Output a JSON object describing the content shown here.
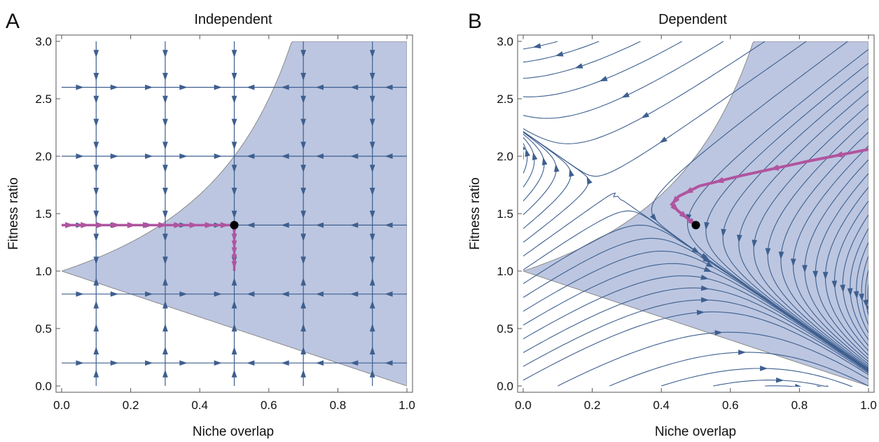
{
  "figure": {
    "colors": {
      "shade": "#b8c3de",
      "flow": "#3e5f8f",
      "trajectory": "#b0549f",
      "point": "#000000",
      "boundary": "#8a8a8a"
    }
  },
  "chart_data": [
    {
      "type": "streamplot",
      "panel_label": "A",
      "title": "Independent",
      "xlabel": "Niche overlap",
      "ylabel": "Fitness ratio",
      "xlim": [
        0,
        1
      ],
      "ylim": [
        0,
        3
      ],
      "x_ticks": [
        "0.0",
        "0.2",
        "0.4",
        "0.6",
        "0.8",
        "1.0"
      ],
      "y_ticks": [
        "0.0",
        "0.5",
        "1.0",
        "1.5",
        "2.0",
        "2.5",
        "3.0"
      ],
      "shaded_region": "coexistence: 1 - x < y < 1/(1 - x)",
      "equilibrium_point": {
        "x": 0.5,
        "y": 1.4
      },
      "flow_lines": {
        "vertical_x": [
          0.1,
          0.3,
          0.5,
          0.7,
          0.9
        ],
        "horizontal_y": [
          0.2,
          0.8,
          1.4,
          2.0,
          2.6
        ]
      },
      "trajectory": [
        [
          0.0,
          1.4
        ],
        [
          0.5,
          1.4
        ],
        [
          0.5,
          1.0
        ]
      ]
    },
    {
      "type": "streamplot",
      "panel_label": "B",
      "title": "Dependent",
      "xlabel": "Niche overlap",
      "ylabel": "Fitness ratio",
      "xlim": [
        0,
        1
      ],
      "ylim": [
        0,
        3
      ],
      "x_ticks": [
        "0.0",
        "0.2",
        "0.4",
        "0.6",
        "0.8",
        "1.0"
      ],
      "y_ticks": [
        "0.0",
        "0.5",
        "1.0",
        "1.5",
        "2.0",
        "2.5",
        "3.0"
      ],
      "shaded_region": "coexistence: 1 - x < y < 1/(1 - x)",
      "equilibrium_point": {
        "x": 0.5,
        "y": 1.4
      },
      "trajectory": [
        [
          1.0,
          2.06
        ],
        [
          0.83,
          1.96
        ],
        [
          0.63,
          1.83
        ],
        [
          0.51,
          1.74
        ],
        [
          0.45,
          1.65
        ],
        [
          0.43,
          1.58
        ],
        [
          0.45,
          1.52
        ],
        [
          0.48,
          1.45
        ],
        [
          0.5,
          1.4
        ]
      ]
    }
  ]
}
